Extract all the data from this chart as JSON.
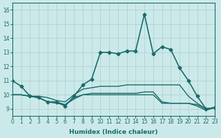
{
  "xlabel": "Humidex (Indice chaleur)",
  "ylabel": "",
  "background_color": "#cce9e9",
  "grid_color": "#aacfcf",
  "line_color": "#1a6b6b",
  "xlim": [
    0,
    23
  ],
  "ylim": [
    8.5,
    16.5
  ],
  "xticks": [
    0,
    1,
    2,
    3,
    4,
    5,
    6,
    7,
    8,
    9,
    10,
    11,
    12,
    13,
    14,
    15,
    16,
    17,
    18,
    19,
    20,
    21,
    22,
    23
  ],
  "yticks": [
    9,
    10,
    11,
    12,
    13,
    14,
    15,
    16
  ],
  "lines": [
    {
      "x": [
        0,
        1,
        2,
        3,
        4,
        5,
        6,
        7,
        8,
        9,
        10,
        11,
        12,
        13,
        14,
        15,
        16,
        17,
        18,
        19,
        20,
        21,
        22,
        23
      ],
      "y": [
        11.0,
        10.6,
        9.9,
        9.8,
        9.5,
        9.5,
        9.2,
        9.9,
        10.7,
        11.1,
        13.0,
        13.0,
        12.9,
        13.1,
        13.1,
        15.7,
        12.9,
        13.4,
        13.2,
        11.9,
        11.0,
        9.9,
        9.0,
        9.1
      ],
      "marker": "D",
      "markersize": 2.5,
      "linewidth": 1.2
    },
    {
      "x": [
        0,
        1,
        2,
        3,
        4,
        5,
        6,
        7,
        8,
        9,
        10,
        11,
        12,
        13,
        14,
        15,
        16,
        17,
        18,
        19,
        20,
        21,
        22,
        23
      ],
      "y": [
        10.0,
        10.0,
        9.9,
        9.9,
        9.8,
        9.6,
        9.5,
        10.0,
        10.4,
        10.5,
        10.6,
        10.6,
        10.6,
        10.7,
        10.7,
        10.7,
        10.7,
        10.7,
        10.7,
        10.7,
        9.9,
        9.4,
        9.0,
        9.1
      ],
      "marker": null,
      "markersize": 0,
      "linewidth": 1.0
    },
    {
      "x": [
        0,
        1,
        2,
        3,
        4,
        5,
        6,
        7,
        8,
        9,
        10,
        11,
        12,
        13,
        14,
        15,
        16,
        17,
        18,
        19,
        20,
        21,
        22,
        23
      ],
      "y": [
        10.0,
        10.0,
        9.9,
        9.8,
        9.5,
        9.4,
        9.3,
        9.8,
        10.0,
        10.1,
        10.1,
        10.1,
        10.1,
        10.1,
        10.1,
        10.2,
        10.2,
        9.5,
        9.4,
        9.4,
        9.4,
        9.3,
        9.0,
        9.1
      ],
      "marker": null,
      "markersize": 0,
      "linewidth": 1.0
    },
    {
      "x": [
        0,
        1,
        2,
        3,
        4,
        5,
        6,
        7,
        8,
        9,
        10,
        11,
        12,
        13,
        14,
        15,
        16,
        17,
        18,
        19,
        20,
        21,
        22,
        23
      ],
      "y": [
        10.0,
        10.0,
        9.9,
        9.8,
        9.5,
        9.5,
        9.3,
        9.7,
        10.0,
        10.0,
        10.0,
        10.0,
        10.0,
        10.0,
        10.0,
        10.0,
        10.0,
        9.4,
        9.4,
        9.4,
        9.4,
        9.2,
        8.9,
        9.1
      ],
      "marker": null,
      "markersize": 0,
      "linewidth": 1.0
    }
  ]
}
